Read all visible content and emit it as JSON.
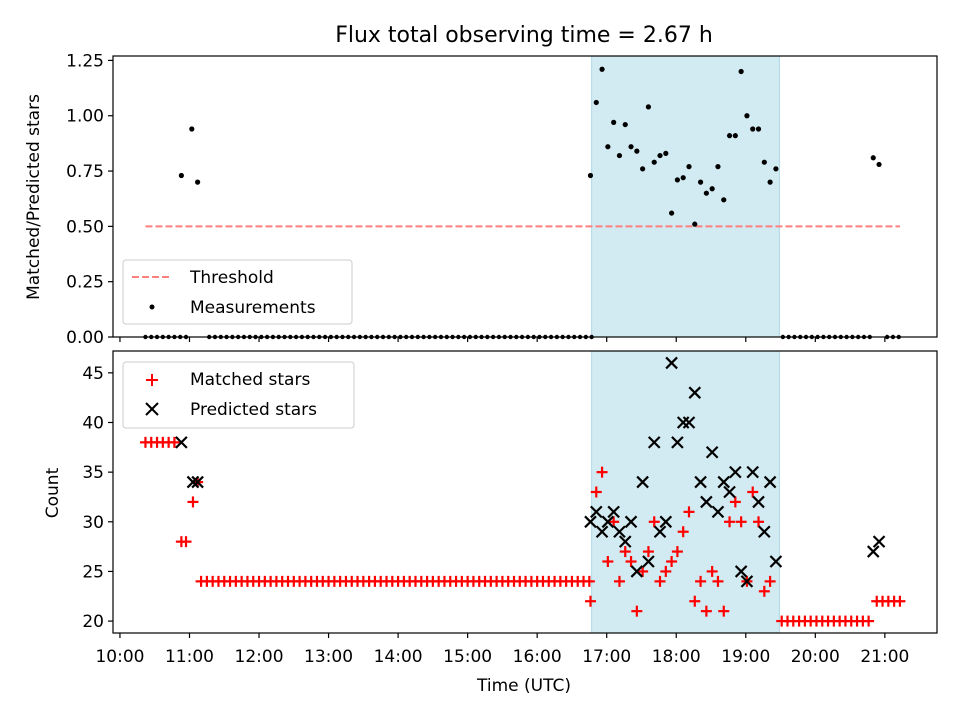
{
  "title": "Flux total observing time = 2.67 h",
  "colors": {
    "threshold": "#ff7f7f",
    "measurement": "#000000",
    "matched": "#ff0000",
    "predicted": "#000000",
    "shade": "#add8e6"
  },
  "shaded_interval": [
    "16:47",
    "19:29"
  ],
  "chart_data": [
    {
      "type": "scatter",
      "panel": "top",
      "xlabel": "",
      "ylabel": "Matched/Predicted stars",
      "ylim": [
        0,
        1.27
      ],
      "yticks": [
        0,
        0.25,
        0.5,
        0.75,
        1.0,
        1.25
      ],
      "ytick_labels": [
        "0.00",
        "0.25",
        "0.50",
        "0.75",
        "1.00",
        "1.25"
      ],
      "legend": {
        "placement": "lower-left",
        "entries": [
          "Threshold",
          "Measurements"
        ]
      },
      "threshold": {
        "name": "Threshold",
        "value": 0.5,
        "x": [
          "10:22",
          "21:13"
        ]
      },
      "zero_measurements": {
        "from": "10:22",
        "to": "21:15",
        "step_minutes": 5,
        "exclude": [
          [
            "10:53",
            "11:13"
          ],
          [
            "16:49",
            "19:30"
          ],
          [
            "20:48",
            "20:58"
          ]
        ],
        "include": [
          "10:57"
        ]
      },
      "measurements": [
        [
          "10:53",
          0.73
        ],
        [
          "11:02",
          0.94
        ],
        [
          "11:07",
          0.7
        ],
        [
          "16:46",
          0.73
        ],
        [
          "16:51",
          1.06
        ],
        [
          "16:56",
          1.21
        ],
        [
          "17:01",
          0.86
        ],
        [
          "17:06",
          0.97
        ],
        [
          "17:11",
          0.82
        ],
        [
          "17:16",
          0.96
        ],
        [
          "17:21",
          0.86
        ],
        [
          "17:26",
          0.84
        ],
        [
          "17:31",
          0.76
        ],
        [
          "17:36",
          1.04
        ],
        [
          "17:41",
          0.79
        ],
        [
          "17:46",
          0.82
        ],
        [
          "17:51",
          0.83
        ],
        [
          "17:56",
          0.56
        ],
        [
          "18:01",
          0.71
        ],
        [
          "18:06",
          0.72
        ],
        [
          "18:11",
          0.77
        ],
        [
          "18:16",
          0.51
        ],
        [
          "18:21",
          0.7
        ],
        [
          "18:26",
          0.65
        ],
        [
          "18:31",
          0.67
        ],
        [
          "18:36",
          0.77
        ],
        [
          "18:41",
          0.62
        ],
        [
          "18:46",
          0.91
        ],
        [
          "18:51",
          0.91
        ],
        [
          "18:56",
          1.2
        ],
        [
          "19:01",
          1.0
        ],
        [
          "19:06",
          0.94
        ],
        [
          "19:11",
          0.94
        ],
        [
          "19:16",
          0.79
        ],
        [
          "19:21",
          0.7
        ],
        [
          "19:26",
          0.76
        ],
        [
          "20:50",
          0.81
        ],
        [
          "20:55",
          0.78
        ]
      ]
    },
    {
      "type": "scatter",
      "panel": "bottom",
      "xlabel": "Time (UTC)",
      "ylabel": "Count",
      "ylim": [
        18.8,
        47.2
      ],
      "yticks": [
        20,
        25,
        30,
        35,
        40,
        45
      ],
      "ytick_labels": [
        "20",
        "25",
        "30",
        "35",
        "40",
        "45"
      ],
      "xlim": [
        "9:54",
        "21:45"
      ],
      "xticks": [
        "10:00",
        "11:00",
        "12:00",
        "13:00",
        "14:00",
        "15:00",
        "16:00",
        "17:00",
        "18:00",
        "19:00",
        "20:00",
        "21:00"
      ],
      "legend": {
        "placement": "upper-left",
        "entries": [
          "Matched stars",
          "Predicted stars"
        ]
      },
      "matched_runs": [
        {
          "from": "10:22",
          "to": "10:48",
          "step_minutes": 5,
          "value": 38
        },
        {
          "from": "11:10",
          "to": "16:45",
          "step_minutes": 5,
          "value": 24
        },
        {
          "from": "19:31",
          "to": "20:48",
          "step_minutes": 5,
          "value": 20
        },
        {
          "from": "20:53",
          "to": "21:15",
          "step_minutes": 5,
          "value": 22
        }
      ],
      "matched_points": [
        [
          "10:53",
          28
        ],
        [
          "10:57",
          28
        ],
        [
          "11:03",
          32
        ],
        [
          "11:07",
          34
        ],
        [
          "16:46",
          22
        ],
        [
          "16:51",
          33
        ],
        [
          "16:56",
          35
        ],
        [
          "17:01",
          26
        ],
        [
          "17:06",
          30
        ],
        [
          "17:11",
          24
        ],
        [
          "17:16",
          27
        ],
        [
          "17:21",
          26
        ],
        [
          "17:26",
          21
        ],
        [
          "17:31",
          25
        ],
        [
          "17:36",
          27
        ],
        [
          "17:41",
          30
        ],
        [
          "17:46",
          24
        ],
        [
          "17:51",
          25
        ],
        [
          "17:56",
          26
        ],
        [
          "18:01",
          27
        ],
        [
          "18:06",
          29
        ],
        [
          "18:11",
          31
        ],
        [
          "18:16",
          22
        ],
        [
          "18:21",
          24
        ],
        [
          "18:26",
          21
        ],
        [
          "18:31",
          25
        ],
        [
          "18:36",
          24
        ],
        [
          "18:41",
          21
        ],
        [
          "18:46",
          30
        ],
        [
          "18:51",
          32
        ],
        [
          "18:56",
          30
        ],
        [
          "19:01",
          24
        ],
        [
          "19:06",
          33
        ],
        [
          "19:11",
          30
        ],
        [
          "19:16",
          23
        ],
        [
          "19:21",
          24
        ]
      ],
      "predicted_points": [
        [
          "10:53",
          38
        ],
        [
          "11:03",
          34
        ],
        [
          "11:07",
          34
        ],
        [
          "16:46",
          30
        ],
        [
          "16:51",
          31
        ],
        [
          "16:56",
          29
        ],
        [
          "17:01",
          30
        ],
        [
          "17:06",
          31
        ],
        [
          "17:11",
          29
        ],
        [
          "17:16",
          28
        ],
        [
          "17:21",
          30
        ],
        [
          "17:26",
          25
        ],
        [
          "17:31",
          34
        ],
        [
          "17:36",
          26
        ],
        [
          "17:41",
          38
        ],
        [
          "17:46",
          29
        ],
        [
          "17:51",
          30
        ],
        [
          "17:56",
          46
        ],
        [
          "18:01",
          38
        ],
        [
          "18:06",
          40
        ],
        [
          "18:11",
          40
        ],
        [
          "18:16",
          43
        ],
        [
          "18:21",
          34
        ],
        [
          "18:26",
          32
        ],
        [
          "18:31",
          37
        ],
        [
          "18:36",
          31
        ],
        [
          "18:41",
          34
        ],
        [
          "18:46",
          33
        ],
        [
          "18:51",
          35
        ],
        [
          "18:56",
          25
        ],
        [
          "19:01",
          24
        ],
        [
          "19:06",
          35
        ],
        [
          "19:11",
          32
        ],
        [
          "19:16",
          29
        ],
        [
          "19:21",
          34
        ],
        [
          "19:26",
          26
        ],
        [
          "20:50",
          27
        ],
        [
          "20:55",
          28
        ]
      ]
    }
  ]
}
